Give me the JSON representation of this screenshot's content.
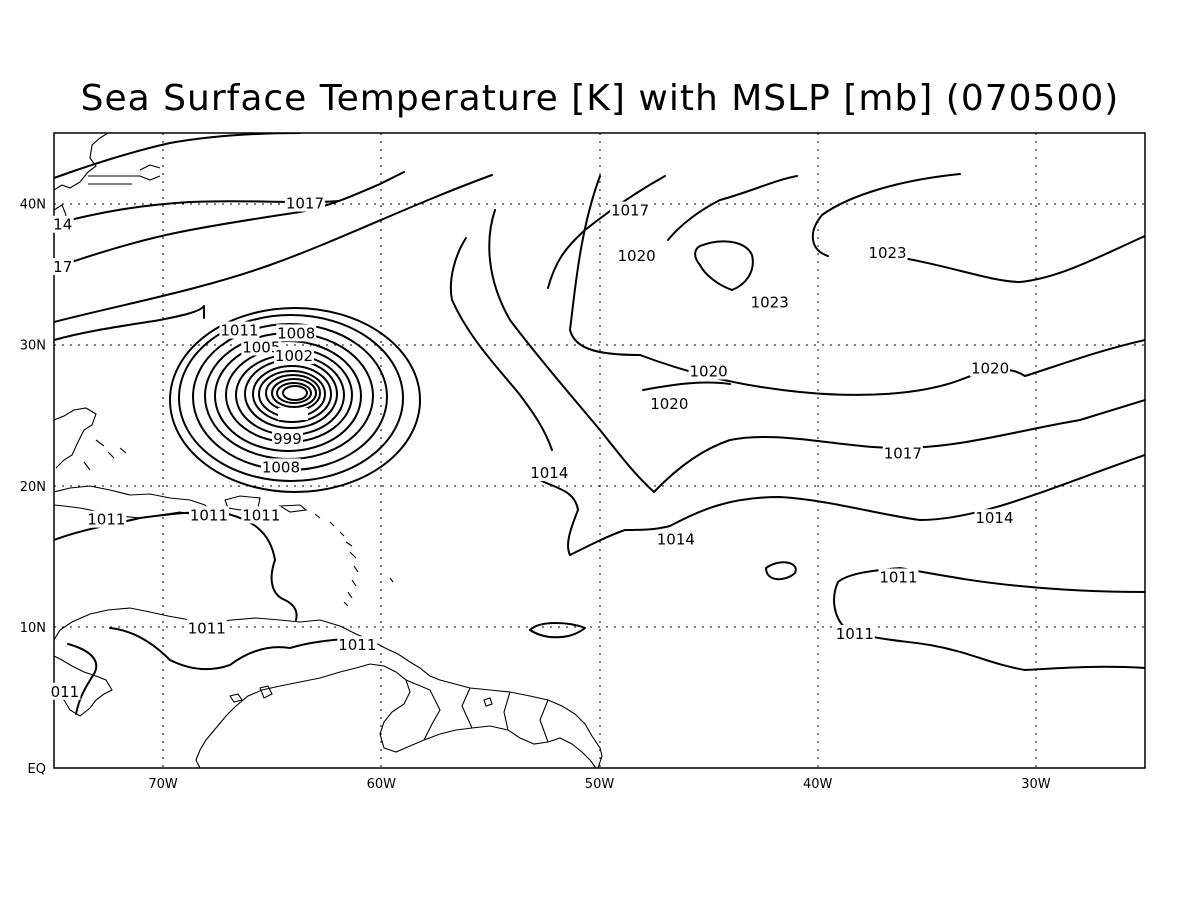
{
  "title": "Sea Surface Temperature [K] with MSLP [mb] (070500)",
  "axes": {
    "lon_ticks": [
      "70W",
      "60W",
      "50W",
      "40W",
      "30W"
    ],
    "lat_ticks": [
      "EQ",
      "10N",
      "20N",
      "30N",
      "40N"
    ],
    "lon_range_deg": [
      -75,
      -25
    ],
    "lat_range_deg": [
      0,
      45
    ],
    "grid": "dotted"
  },
  "contour_labels": [
    {
      "text": "1017",
      "lon": -63.5,
      "lat": 40.0
    },
    {
      "text": "14",
      "lon": -74.6,
      "lat": 38.5
    },
    {
      "text": "17",
      "lon": -74.6,
      "lat": 35.5
    },
    {
      "text": "1011",
      "lon": -66.5,
      "lat": 31.0
    },
    {
      "text": "1008",
      "lon": -63.9,
      "lat": 30.8
    },
    {
      "text": "1005",
      "lon": -65.5,
      "lat": 29.8
    },
    {
      "text": "1002",
      "lon": -64.0,
      "lat": 29.2
    },
    {
      "text": "999",
      "lon": -64.3,
      "lat": 23.3
    },
    {
      "text": "1008",
      "lon": -64.6,
      "lat": 21.3
    },
    {
      "text": "1017",
      "lon": -48.6,
      "lat": 39.5
    },
    {
      "text": "1020",
      "lon": -48.3,
      "lat": 36.3
    },
    {
      "text": "1023",
      "lon": -42.2,
      "lat": 33.0
    },
    {
      "text": "1023",
      "lon": -36.8,
      "lat": 36.5
    },
    {
      "text": "1020",
      "lon": -45.0,
      "lat": 28.1
    },
    {
      "text": "1020",
      "lon": -46.8,
      "lat": 25.8
    },
    {
      "text": "1020",
      "lon": -32.1,
      "lat": 28.3
    },
    {
      "text": "1017",
      "lon": -36.1,
      "lat": 22.3
    },
    {
      "text": "1014",
      "lon": -52.3,
      "lat": 20.9
    },
    {
      "text": "1014",
      "lon": -46.5,
      "lat": 16.2
    },
    {
      "text": "1014",
      "lon": -31.9,
      "lat": 17.7
    },
    {
      "text": "1011",
      "lon": -72.6,
      "lat": 17.6
    },
    {
      "text": "1011",
      "lon": -67.9,
      "lat": 17.9
    },
    {
      "text": "1011",
      "lon": -65.5,
      "lat": 17.9
    },
    {
      "text": "1011",
      "lon": -36.3,
      "lat": 13.5
    },
    {
      "text": "1011",
      "lon": -38.3,
      "lat": 9.5
    },
    {
      "text": "1011",
      "lon": -68.0,
      "lat": 9.9
    },
    {
      "text": "1011",
      "lon": -61.1,
      "lat": 8.7
    },
    {
      "text": "011",
      "lon": -74.5,
      "lat": 5.4
    }
  ],
  "low_center": {
    "lon": -64.0,
    "lat": 26.5,
    "label": "999"
  }
}
